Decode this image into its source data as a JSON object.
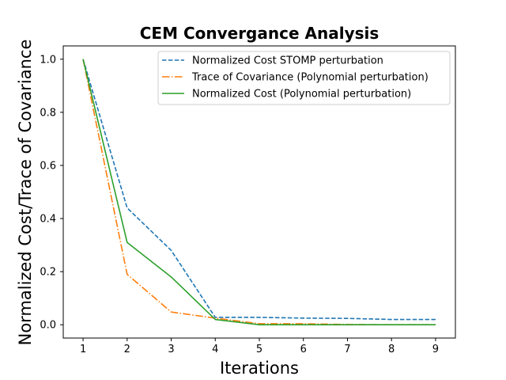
{
  "chart_data": {
    "type": "line",
    "title": "CEM Convergance Analysis",
    "xlabel": "Iterations",
    "ylabel": "Normalized Cost/Trace of Covariance",
    "x": [
      1,
      2,
      3,
      4,
      5,
      6,
      7,
      8,
      9
    ],
    "xlim": [
      0.55,
      9.45
    ],
    "ylim": [
      -0.05,
      1.05
    ],
    "xticks": [
      "1",
      "2",
      "3",
      "4",
      "5",
      "6",
      "7",
      "8",
      "9"
    ],
    "yticks": [
      "0.0",
      "0.2",
      "0.4",
      "0.6",
      "0.8",
      "1.0"
    ],
    "ytick_values": [
      0.0,
      0.2,
      0.4,
      0.6,
      0.8,
      1.0
    ],
    "grid": false,
    "legend_position": "upper-right",
    "series": [
      {
        "name": "Normalized Cost STOMP perturbation",
        "color": "#1f77b4",
        "linestyle": "dashed",
        "values": [
          1.0,
          0.44,
          0.28,
          0.028,
          0.028,
          0.025,
          0.024,
          0.02,
          0.02
        ]
      },
      {
        "name": "Trace of Covariance (Polynomial perturbation)",
        "color": "#ff7f0e",
        "linestyle": "dashdot",
        "values": [
          1.0,
          0.19,
          0.048,
          0.025,
          0.004,
          0.004,
          0.001,
          0.0,
          0.0
        ]
      },
      {
        "name": "Normalized Cost (Polynomial perturbation)",
        "color": "#2ca02c",
        "linestyle": "solid",
        "values": [
          1.0,
          0.31,
          0.18,
          0.02,
          0.0,
          0.0,
          0.0,
          0.0,
          0.0
        ]
      }
    ]
  }
}
